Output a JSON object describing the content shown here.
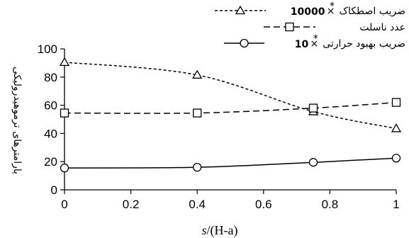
{
  "chart_data": {
    "type": "line",
    "x": [
      0,
      0.4,
      0.75,
      1
    ],
    "xlim": [
      0,
      1
    ],
    "ylim": [
      0,
      100
    ],
    "x_ticks": [
      "0",
      "0.2",
      "0.4",
      "0.6",
      "0.8",
      "1"
    ],
    "y_ticks": [
      "0",
      "20",
      "40",
      "60",
      "80",
      "100"
    ],
    "xlabel": "s/(H-a)",
    "xlabel_italic_part": "s",
    "xlabel_rest": "/(H-a)",
    "ylabel": "پارامترهای ترموهیدرولیکی",
    "grid": false,
    "legend_position": "top-right",
    "series": [
      {
        "name": "ضریب اصطکاک × 10000",
        "legend_text": "ضریب اصطکاک",
        "legend_multiplier": "10000",
        "values": [
          90.5,
          81.5,
          55.5,
          43.5
        ],
        "marker": "triangle",
        "dash": "short-dash",
        "color": "#000000"
      },
      {
        "name": "عدد ناسلت",
        "legend_text": "عدد ناسلت",
        "legend_multiplier": "",
        "values": [
          54.5,
          54.5,
          58.0,
          62.0
        ],
        "marker": "square",
        "dash": "long-dash",
        "color": "#000000"
      },
      {
        "name": "ضریب بهبود حرارتی × 10",
        "legend_text": "ضریب بهبود حرارتی",
        "legend_multiplier": "10",
        "values": [
          15.5,
          16.0,
          19.5,
          22.5
        ],
        "marker": "circle",
        "dash": "solid",
        "color": "#000000"
      }
    ]
  }
}
